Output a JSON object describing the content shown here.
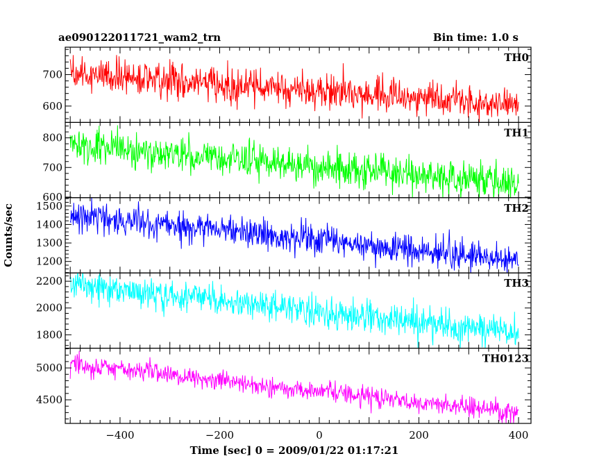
{
  "chart_data": {
    "type": "line",
    "title": "ae090122011721_wam2_trn",
    "title_right": "Bin time: 1.0 s",
    "xlabel": "Time [sec] 0 = 2009/01/22 01:17:21",
    "ylabel": "Counts/sec",
    "xlim": [
      -510,
      425
    ],
    "x_ticks": [
      -400,
      -200,
      0,
      200,
      400
    ],
    "x_range": [
      -500,
      400
    ],
    "bin_time": 1.0,
    "grid": false,
    "panels": [
      {
        "name": "TH0",
        "color": "#ff0000",
        "ylim": [
          548,
          787
        ],
        "y_ticks": [
          600,
          700
        ],
        "trend": {
          "x": [
            -500,
            400
          ],
          "y": [
            703,
            603
          ]
        },
        "noise_std": 26
      },
      {
        "name": "TH1",
        "color": "#00ff00",
        "ylim": [
          598,
          852
        ],
        "y_ticks": [
          600,
          700,
          800
        ],
        "trend": {
          "x": [
            -500,
            400
          ],
          "y": [
            778,
            642
          ]
        },
        "noise_std": 30
      },
      {
        "name": "TH2",
        "color": "#0000ff",
        "ylim": [
          1138,
          1545
        ],
        "y_ticks": [
          1200,
          1300,
          1400,
          1500
        ],
        "trend": {
          "x": [
            -500,
            400
          ],
          "y": [
            1455,
            1203
          ]
        },
        "noise_std": 40
      },
      {
        "name": "TH3",
        "color": "#00ffff",
        "ylim": [
          1700,
          2262
        ],
        "y_ticks": [
          1800,
          2000,
          2200
        ],
        "trend": {
          "x": [
            -500,
            400
          ],
          "y": [
            2170,
            1820
          ]
        },
        "noise_std": 55
      },
      {
        "name": "TH0123",
        "color": "#ff00ff",
        "ylim": [
          4130,
          5310
        ],
        "y_ticks": [
          4500,
          5000
        ],
        "trend": {
          "x": [
            -500,
            400
          ],
          "y": [
            5060,
            4290
          ]
        },
        "noise_std": 75
      }
    ]
  }
}
